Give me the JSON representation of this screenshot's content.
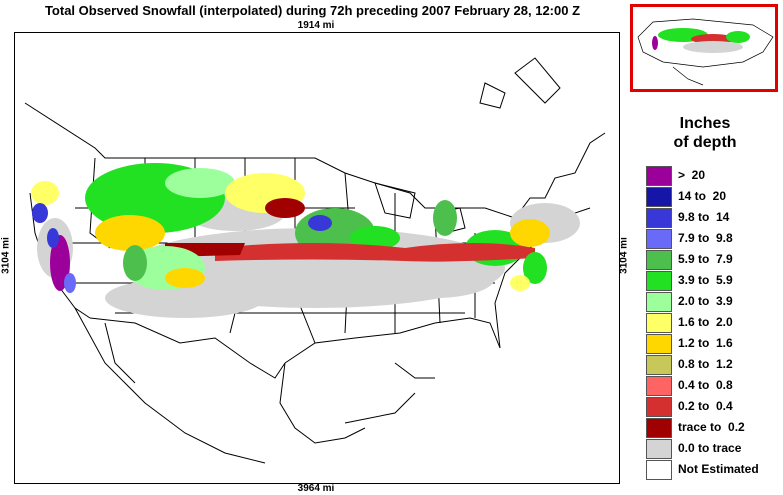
{
  "title": "Total Observed Snowfall (interpolated) during 72h preceding 2007 February 28, 12:00 Z",
  "scale": {
    "top": "1914 mi",
    "bottom": "3964 mi",
    "left": "3104 mi",
    "right": "3104 mi"
  },
  "legend": {
    "title_line1": "Inches",
    "title_line2": "of depth",
    "items": [
      {
        "label": ">  20",
        "color": "#9b009b"
      },
      {
        "label": "14 to  20",
        "color": "#1515a8"
      },
      {
        "label": "9.8 to  14",
        "color": "#3838d8"
      },
      {
        "label": "7.9 to  9.8",
        "color": "#6a6af8"
      },
      {
        "label": "5.9 to  7.9",
        "color": "#4cbf4c"
      },
      {
        "label": "3.9 to  5.9",
        "color": "#22e022"
      },
      {
        "label": "2.0 to  3.9",
        "color": "#9cff9c"
      },
      {
        "label": "1.6 to  2.0",
        "color": "#ffff66"
      },
      {
        "label": "1.2 to  1.6",
        "color": "#ffd700"
      },
      {
        "label": "0.8 to  1.2",
        "color": "#c8c85a"
      },
      {
        "label": "0.4 to  0.8",
        "color": "#ff6464"
      },
      {
        "label": "0.2 to  0.4",
        "color": "#d43030"
      },
      {
        "label": "trace to  0.2",
        "color": "#a00000"
      },
      {
        "label": "0.0 to trace",
        "color": "#d4d4d4"
      }
    ],
    "not_estimated": {
      "label": "Not Estimated",
      "color": "#ffffff"
    }
  }
}
